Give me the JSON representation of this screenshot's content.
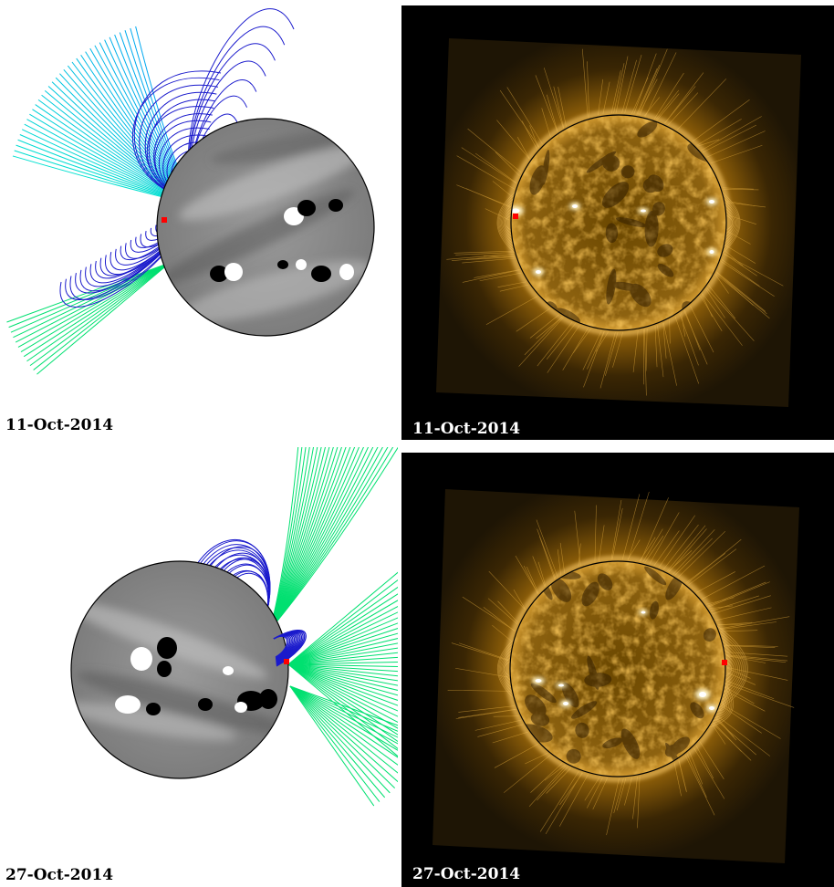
{
  "panels": [
    {
      "id": "pfss-2014-10-11",
      "kind": "field-line-model",
      "date_label": "11-Oct-2014",
      "open_field_colors": [
        "#00c8e0",
        "#00e070"
      ],
      "closed_field_color": "#1a1acc",
      "marker_color": "#ff0000"
    },
    {
      "id": "aia-2014-10-11",
      "kind": "euv-image",
      "date_label": "11-Oct-2014",
      "marker_color": "#ff0000"
    },
    {
      "id": "pfss-2014-10-27",
      "kind": "field-line-model",
      "date_label": "27-Oct-2014",
      "open_field_colors": [
        "#00e070"
      ],
      "closed_field_color": "#1a1acc",
      "marker_color": "#ff0000"
    },
    {
      "id": "aia-2014-10-27",
      "kind": "euv-image",
      "date_label": "27-Oct-2014",
      "marker_color": "#ff0000"
    }
  ]
}
